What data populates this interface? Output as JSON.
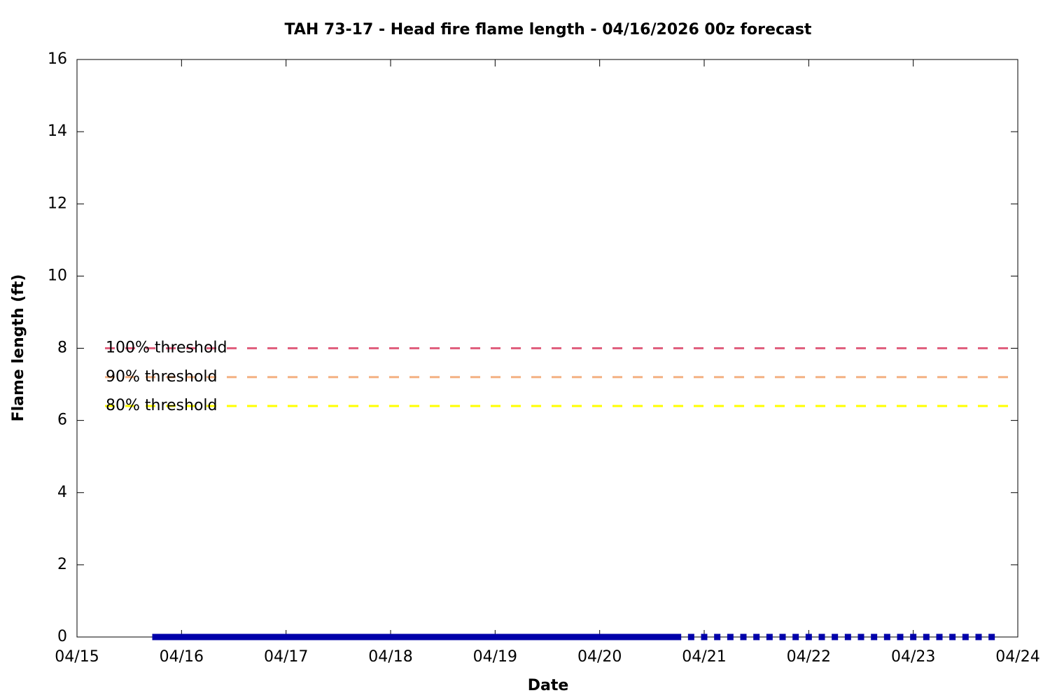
{
  "chart_data": {
    "type": "line",
    "title": "TAH 73-17 - Head fire flame length - 04/16/2026 00z forecast",
    "x_label": "Date",
    "y_label": "Flame length (ft)",
    "xlim": [
      0,
      9
    ],
    "xticks": [
      {
        "value": 0,
        "label": "04/15"
      },
      {
        "value": 1,
        "label": "04/16"
      },
      {
        "value": 2,
        "label": "04/17"
      },
      {
        "value": 3,
        "label": "04/18"
      },
      {
        "value": 4,
        "label": "04/19"
      },
      {
        "value": 5,
        "label": "04/20"
      },
      {
        "value": 6,
        "label": "04/21"
      },
      {
        "value": 7,
        "label": "04/22"
      },
      {
        "value": 8,
        "label": "04/23"
      },
      {
        "value": 9,
        "label": "04/24"
      }
    ],
    "ylim": [
      0,
      16
    ],
    "yticks": [
      0,
      2,
      4,
      6,
      8,
      10,
      12,
      14,
      16
    ],
    "thresholds": [
      {
        "label": "100% threshold",
        "value": 8,
        "color": "#e0607e"
      },
      {
        "label": "90% threshold",
        "value": 7.2,
        "color": "#f4b183"
      },
      {
        "label": "80% threshold",
        "value": 6.4,
        "color": "#ffff00"
      }
    ],
    "series": [
      {
        "color": "#0000aa",
        "style": "solid",
        "x": [
          0.75,
          0.875,
          1,
          1.125,
          1.25,
          1.375,
          1.5,
          1.625,
          1.75,
          1.875,
          2,
          2.125,
          2.25,
          2.375,
          2.5,
          2.625,
          2.75,
          2.875,
          3,
          3.125,
          3.25,
          3.375,
          3.5,
          3.625,
          3.75,
          3.875,
          4,
          4.125,
          4.25,
          4.375,
          4.5,
          4.625,
          4.75,
          4.875,
          5,
          5.125,
          5.25,
          5.375,
          5.5,
          5.625,
          5.75
        ],
        "values": [
          0,
          0,
          0,
          0,
          0,
          0,
          0,
          0,
          0,
          0,
          0,
          0,
          0,
          0,
          0,
          0,
          0,
          0,
          0,
          0,
          0,
          0,
          0,
          0,
          0,
          0,
          0,
          0,
          0,
          0,
          0,
          0,
          0,
          0,
          0,
          0,
          0,
          0,
          0,
          0,
          0
        ]
      },
      {
        "color": "#0000aa",
        "style": "dotted",
        "x": [
          5.875,
          6,
          6.125,
          6.25,
          6.375,
          6.5,
          6.625,
          6.75,
          6.875,
          7,
          7.125,
          7.25,
          7.375,
          7.5,
          7.625,
          7.75,
          7.875,
          8,
          8.125,
          8.25,
          8.375,
          8.5,
          8.625,
          8.75
        ],
        "values": [
          0,
          0,
          0,
          0,
          0,
          0,
          0,
          0,
          0,
          0,
          0,
          0,
          0,
          0,
          0,
          0,
          0,
          0,
          0,
          0,
          0,
          0,
          0,
          0
        ]
      }
    ]
  }
}
